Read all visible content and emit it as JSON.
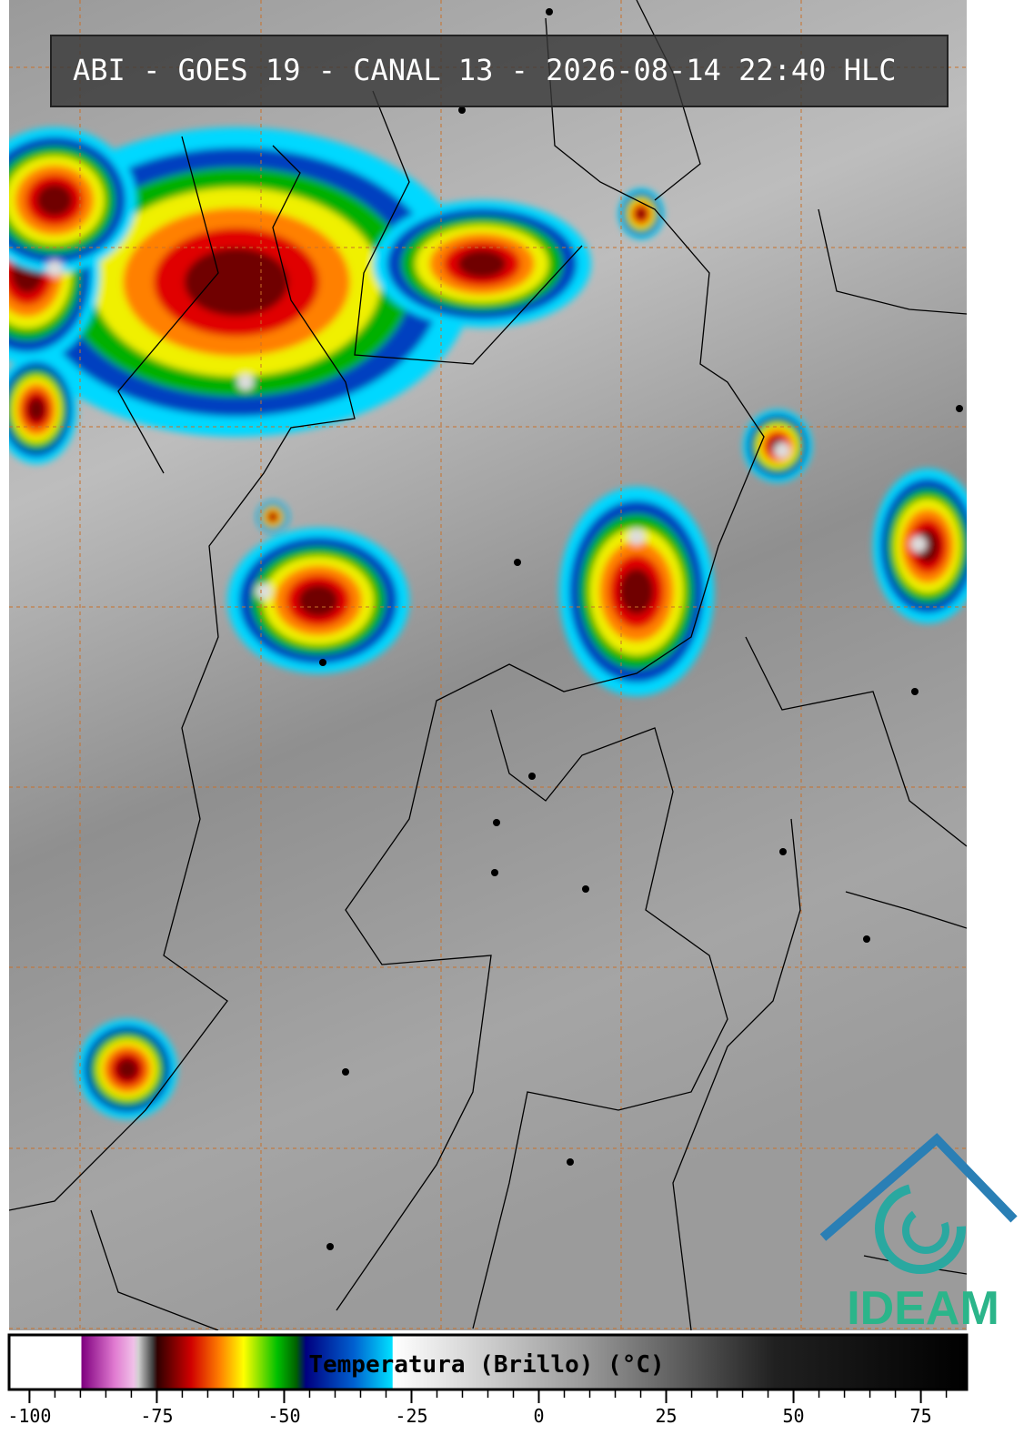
{
  "header": {
    "title": "ABI - GOES 19 - CANAL 13 - 2026-08-14 22:40 HLC"
  },
  "colorbar": {
    "label": "Temperatura (Brillo) (°C)",
    "range": [
      -104,
      84
    ],
    "ticks": [
      -100,
      -75,
      -50,
      -25,
      0,
      25,
      50,
      75
    ]
  },
  "logo": {
    "text": "IDEAM"
  }
}
